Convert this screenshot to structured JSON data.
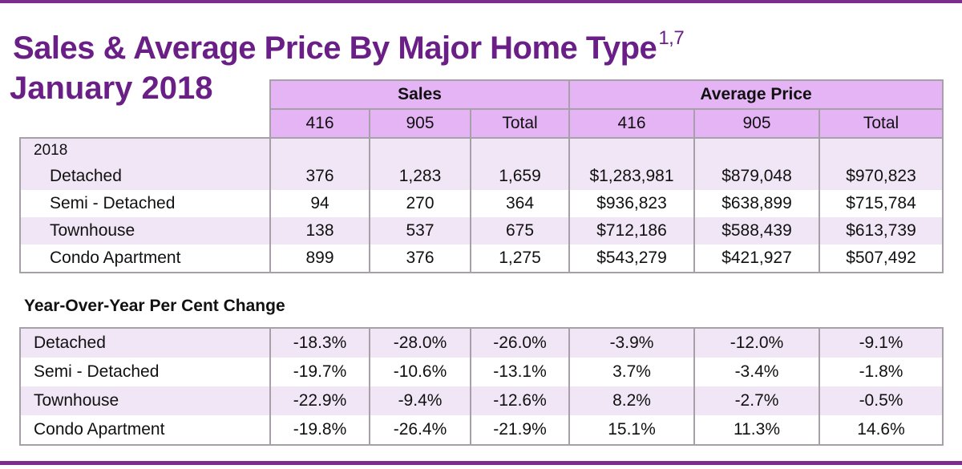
{
  "title": "Sales & Average Price By Major Home Type",
  "title_superscript": "1,7",
  "subtitle": "January 2018",
  "colors": {
    "accent": "#6a1f86",
    "header_fill": "#e4b4f5",
    "band_fill": "#f0e6f5",
    "border": "#a7a0a9"
  },
  "header": {
    "groups": [
      "Sales",
      "Average Price"
    ],
    "columns": [
      "416",
      "905",
      "Total",
      "416",
      "905",
      "Total"
    ]
  },
  "main": {
    "year_label": "2018",
    "rows": [
      {
        "label": "Detached",
        "values": [
          "376",
          "1,283",
          "1,659",
          "$1,283,981",
          "$879,048",
          "$970,823"
        ]
      },
      {
        "label": "Semi - Detached",
        "values": [
          "94",
          "270",
          "364",
          "$936,823",
          "$638,899",
          "$715,784"
        ]
      },
      {
        "label": "Townhouse",
        "values": [
          "138",
          "537",
          "675",
          "$712,186",
          "$588,439",
          "$613,739"
        ]
      },
      {
        "label": "Condo Apartment",
        "values": [
          "899",
          "376",
          "1,275",
          "$543,279",
          "$421,927",
          "$507,492"
        ]
      }
    ]
  },
  "yoy": {
    "heading": "Year-Over-Year Per Cent Change",
    "rows": [
      {
        "label": "Detached",
        "values": [
          "-18.3%",
          "-28.0%",
          "-26.0%",
          "-3.9%",
          "-12.0%",
          "-9.1%"
        ]
      },
      {
        "label": "Semi - Detached",
        "values": [
          "-19.7%",
          "-10.6%",
          "-13.1%",
          "3.7%",
          "-3.4%",
          "-1.8%"
        ]
      },
      {
        "label": "Townhouse",
        "values": [
          "-22.9%",
          "-9.4%",
          "-12.6%",
          "8.2%",
          "-2.7%",
          "-0.5%"
        ]
      },
      {
        "label": "Condo Apartment",
        "values": [
          "-19.8%",
          "-26.4%",
          "-21.9%",
          "15.1%",
          "11.3%",
          "14.6%"
        ]
      }
    ]
  }
}
